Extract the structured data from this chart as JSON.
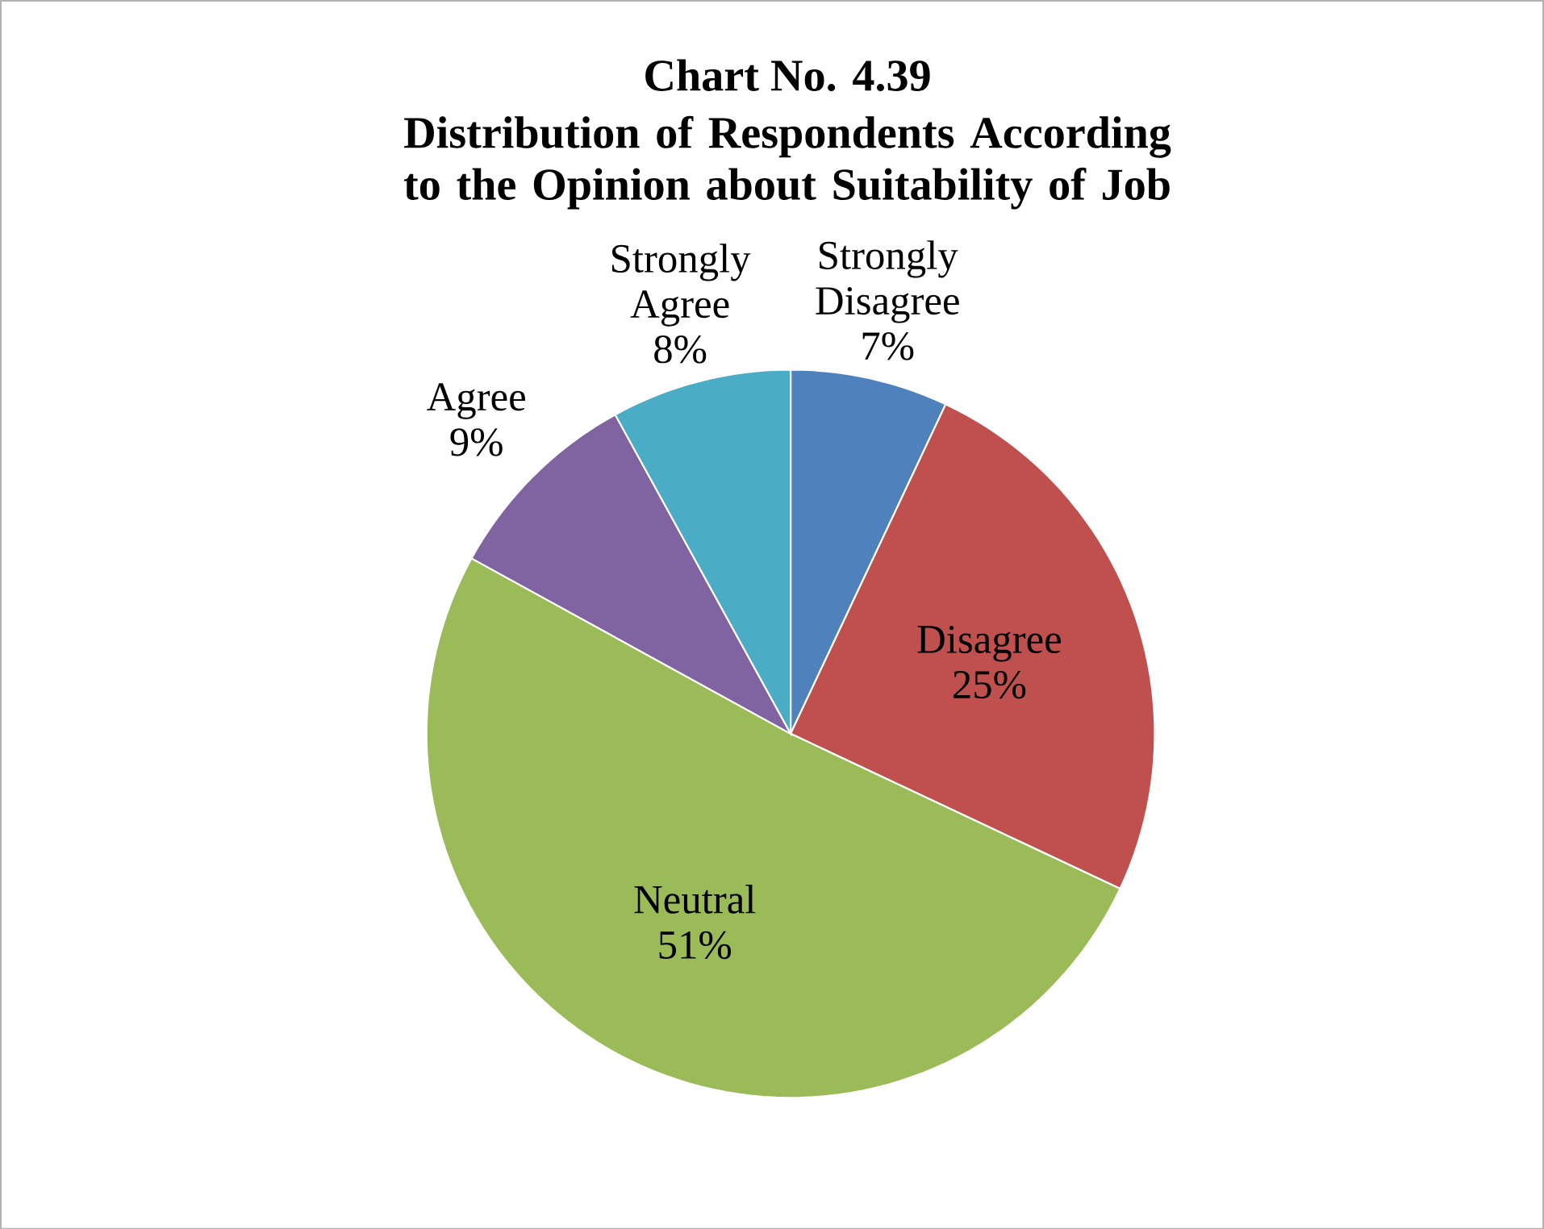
{
  "chart_data": {
    "type": "pie",
    "title": "Chart No. 4.39",
    "subtitle": "Distribution of Respondents According to the Opinion about Suitability of Job",
    "categories": [
      "Strongly Disagree",
      "Disagree",
      "Neutral",
      "Agree",
      "Strongly Agree"
    ],
    "values": [
      7,
      25,
      51,
      9,
      8
    ],
    "value_labels": [
      "7%",
      "25%",
      "51%",
      "9%",
      "8%"
    ],
    "colors": [
      "#4f81bd",
      "#c0504d",
      "#9bbb59",
      "#8064a2",
      "#4bacc6"
    ]
  }
}
